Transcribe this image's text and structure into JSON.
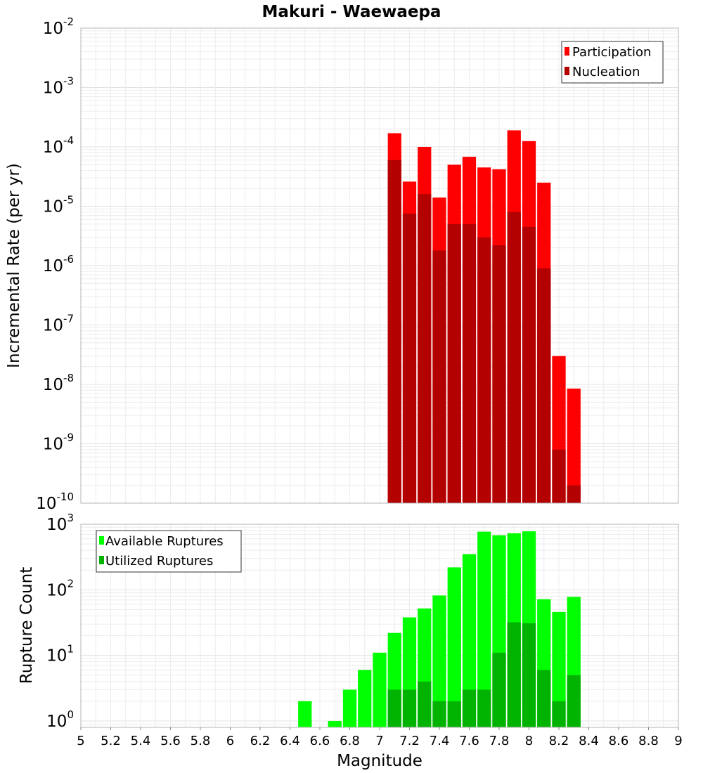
{
  "chart_data": [
    {
      "type": "bar",
      "title": "Makuri - Waewaepa",
      "xlabel": "",
      "ylabel": "Incremental Rate (per yr)",
      "y_scale": "log",
      "ylim": [
        1e-10,
        0.01
      ],
      "xlim": [
        5,
        9
      ],
      "y_ticks": [
        {
          "base": "10",
          "exp": "-10"
        },
        {
          "base": "10",
          "exp": "-9"
        },
        {
          "base": "10",
          "exp": "-8"
        },
        {
          "base": "10",
          "exp": "-7"
        },
        {
          "base": "10",
          "exp": "-6"
        },
        {
          "base": "10",
          "exp": "-5"
        },
        {
          "base": "10",
          "exp": "-4"
        },
        {
          "base": "10",
          "exp": "-3"
        },
        {
          "base": "10",
          "exp": "-2"
        }
      ],
      "grid": true,
      "legend_position": "top-right",
      "x": [
        7.1,
        7.2,
        7.3,
        7.4,
        7.5,
        7.6,
        7.7,
        7.8,
        7.9,
        8.0,
        8.1,
        8.2,
        8.3
      ],
      "series": [
        {
          "name": "Participation",
          "color": "#ff0000",
          "values": [
            0.00017,
            2.6e-05,
            0.0001,
            1.4e-05,
            5e-05,
            6.8e-05,
            4.5e-05,
            4.2e-05,
            0.00019,
            0.000125,
            2.5e-05,
            3e-08,
            8.5e-09
          ]
        },
        {
          "name": "Nucleation",
          "color": "#b30000",
          "values": [
            6e-05,
            7.5e-06,
            1.6e-05,
            1.8e-06,
            5e-06,
            5e-06,
            3e-06,
            2.2e-06,
            8e-06,
            4.5e-06,
            9e-07,
            8e-10,
            2e-10
          ]
        }
      ]
    },
    {
      "type": "bar",
      "title": "",
      "xlabel": "Magnitude",
      "ylabel": "Rupture Count",
      "y_scale": "log",
      "ylim": [
        0.8,
        1000
      ],
      "xlim": [
        5,
        9
      ],
      "y_ticks": [
        {
          "value": 1,
          "base": "10",
          "exp": "0"
        },
        {
          "value": 10,
          "base": "10",
          "exp": "1"
        },
        {
          "value": 100,
          "base": "10",
          "exp": "2"
        },
        {
          "value": 1000,
          "base": "10",
          "exp": "3"
        }
      ],
      "x_ticks": [
        "5",
        "5.2",
        "5.4",
        "5.6",
        "5.8",
        "6",
        "6.2",
        "6.4",
        "6.6",
        "6.8",
        "7",
        "7.2",
        "7.4",
        "7.6",
        "7.8",
        "8",
        "8.2",
        "8.4",
        "8.6",
        "8.8",
        "9"
      ],
      "grid": true,
      "legend_position": "top-left",
      "x": [
        6.5,
        6.6,
        6.7,
        6.8,
        6.9,
        7.0,
        7.1,
        7.2,
        7.3,
        7.4,
        7.5,
        7.6,
        7.7,
        7.8,
        7.9,
        8.0,
        8.1,
        8.2,
        8.3
      ],
      "series": [
        {
          "name": "Available Ruptures",
          "color": "#00ff00",
          "values": [
            2,
            0,
            1,
            3,
            6,
            11,
            22,
            38,
            52,
            82,
            220,
            350,
            770,
            680,
            730,
            780,
            72,
            46,
            78
          ]
        },
        {
          "name": "Utilized Ruptures",
          "color": "#00b300",
          "values": [
            0,
            0,
            0,
            0,
            0,
            0,
            3,
            3,
            4,
            2,
            2,
            3,
            3,
            11,
            32,
            31,
            6,
            2,
            5
          ]
        }
      ]
    }
  ]
}
